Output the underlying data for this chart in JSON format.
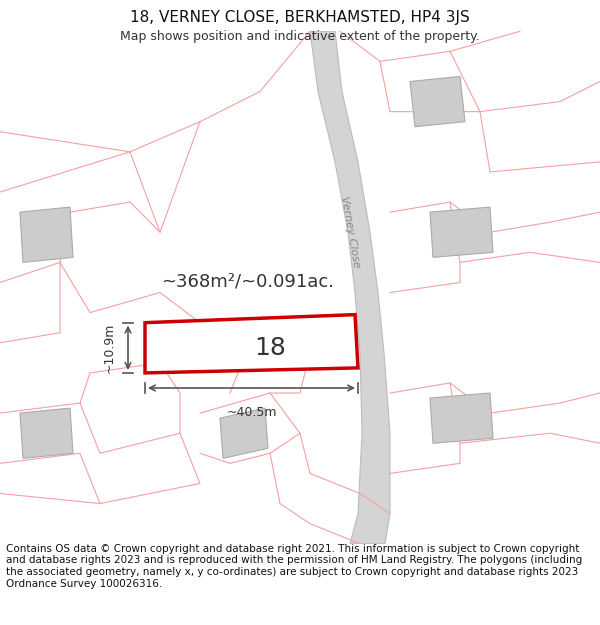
{
  "title": "18, VERNEY CLOSE, BERKHAMSTED, HP4 3JS",
  "subtitle": "Map shows position and indicative extent of the property.",
  "area_text": "~368m²/~0.091ac.",
  "width_label": "~40.5m",
  "height_label": "~10.9m",
  "plot_number": "18",
  "street_label": "Verney Close",
  "footer": "Contains OS data © Crown copyright and database right 2021. This information is subject to Crown copyright and database rights 2023 and is reproduced with the permission of HM Land Registry. The polygons (including the associated geometry, namely x, y co-ordinates) are subject to Crown copyright and database rights 2023 Ordnance Survey 100026316.",
  "bg_color": "#ffffff",
  "map_bg": "#f5f5f5",
  "plot_fill": "#ffffff",
  "plot_edge": "#cc0000",
  "road_color": "#d4d4d4",
  "building_fill": "#cccccc",
  "building_edge": "#aaaaaa",
  "other_line_color": "#f4a0a0",
  "road_outline": "#bbbbbb",
  "title_fontsize": 11,
  "subtitle_fontsize": 9,
  "footer_fontsize": 7.5
}
